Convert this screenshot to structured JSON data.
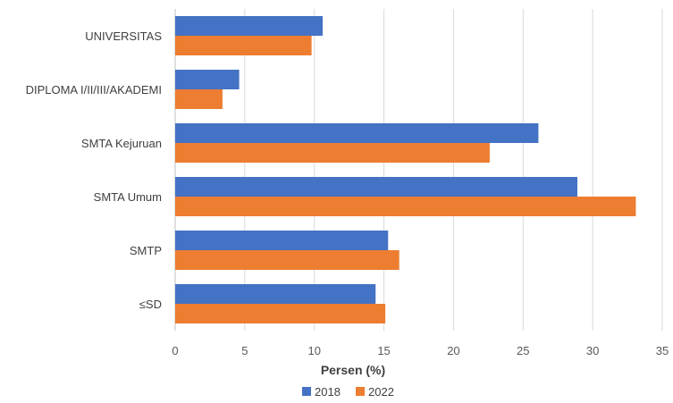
{
  "chart_data": {
    "type": "bar",
    "orientation": "horizontal",
    "categories": [
      "UNIVERSITAS",
      "DIPLOMA I/II/III/AKADEMI",
      "SMTA Kejuruan",
      "SMTA Umum",
      "SMTP",
      "≤SD"
    ],
    "series": [
      {
        "name": "2018",
        "color": "#4472c4",
        "values": [
          10.6,
          4.6,
          26.1,
          28.9,
          15.3,
          14.4
        ]
      },
      {
        "name": "2022",
        "color": "#ed7d31",
        "values": [
          9.8,
          3.4,
          22.6,
          33.1,
          16.1,
          15.1
        ]
      }
    ],
    "xlabel": "Persen (%)",
    "xlim": [
      0,
      35
    ],
    "xticks": [
      "0",
      "5",
      "10",
      "15",
      "20",
      "25",
      "30",
      "35"
    ],
    "grid": "vertical",
    "legend_position": "bottom"
  }
}
